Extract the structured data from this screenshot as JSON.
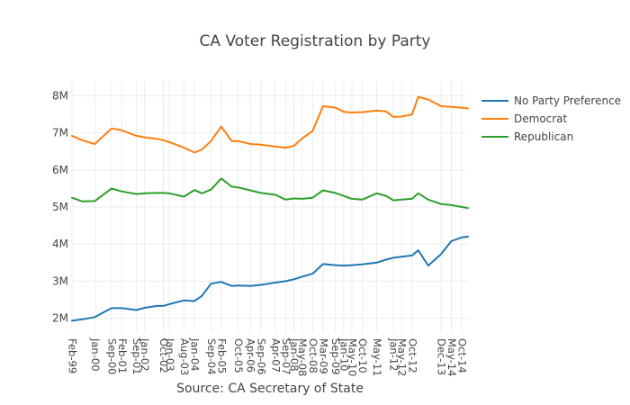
{
  "chart_data": {
    "type": "line",
    "title": "CA Voter Registration by Party",
    "xlabel": "Source: CA Secretary of State",
    "ylabel": "",
    "ylim": [
      1.6,
      8.4
    ],
    "y_unit": "millions of registered voters",
    "yticks": [
      {
        "value": 2,
        "label": "2M"
      },
      {
        "value": 3,
        "label": "3M"
      },
      {
        "value": 4,
        "label": "4M"
      },
      {
        "value": 5,
        "label": "5M"
      },
      {
        "value": 6,
        "label": "6M"
      },
      {
        "value": 7,
        "label": "7M"
      },
      {
        "value": 8,
        "label": "8M"
      }
    ],
    "xlim": [
      1999.08,
      2015.0
    ],
    "xticks": [
      {
        "value": 1999.08,
        "label": "Feb-99"
      },
      {
        "value": 2000.0,
        "label": "Jan-00"
      },
      {
        "value": 2000.67,
        "label": "Sep-00"
      },
      {
        "value": 2001.08,
        "label": "Feb-01"
      },
      {
        "value": 2001.67,
        "label": "Sep-01"
      },
      {
        "value": 2002.0,
        "label": "Jan-02"
      },
      {
        "value": 2002.75,
        "label": "Oct-02"
      },
      {
        "value": 2003.0,
        "label": "Jan-03"
      },
      {
        "value": 2003.58,
        "label": "Aug-03"
      },
      {
        "value": 2004.0,
        "label": "Jan-04"
      },
      {
        "value": 2004.67,
        "label": "Sep-04"
      },
      {
        "value": 2005.08,
        "label": "Feb-05"
      },
      {
        "value": 2005.75,
        "label": "Oct-05"
      },
      {
        "value": 2006.25,
        "label": "Apr-06"
      },
      {
        "value": 2006.67,
        "label": "Sep-06"
      },
      {
        "value": 2007.25,
        "label": "Apr-07"
      },
      {
        "value": 2007.67,
        "label": "Sep-07"
      },
      {
        "value": 2008.0,
        "label": "Jan-08"
      },
      {
        "value": 2008.33,
        "label": "May-08"
      },
      {
        "value": 2008.75,
        "label": "Oct-08"
      },
      {
        "value": 2009.17,
        "label": "Mar-09"
      },
      {
        "value": 2009.67,
        "label": "Sep-09"
      },
      {
        "value": 2010.0,
        "label": "Jan-10"
      },
      {
        "value": 2010.33,
        "label": "May-10"
      },
      {
        "value": 2010.75,
        "label": "Oct-10"
      },
      {
        "value": 2011.33,
        "label": "May-11"
      },
      {
        "value": 2012.0,
        "label": "Jan-12"
      },
      {
        "value": 2012.33,
        "label": "May-12"
      },
      {
        "value": 2012.75,
        "label": "Oct-12"
      },
      {
        "value": 2013.92,
        "label": "Dec-13"
      },
      {
        "value": 2014.33,
        "label": "May-14"
      },
      {
        "value": 2014.75,
        "label": "Oct-14"
      }
    ],
    "series": [
      {
        "name": "No Party Preference",
        "color": "#1f77b4",
        "x": [
          1999.08,
          1999.5,
          2000.0,
          2000.67,
          2001.08,
          2001.67,
          2002.0,
          2002.5,
          2002.75,
          2003.0,
          2003.58,
          2004.0,
          2004.3,
          2004.67,
          2005.08,
          2005.5,
          2005.75,
          2006.25,
          2006.67,
          2007.25,
          2007.67,
          2008.0,
          2008.33,
          2008.75,
          2009.17,
          2009.67,
          2010.0,
          2010.33,
          2010.75,
          2011.33,
          2011.7,
          2012.0,
          2012.33,
          2012.75,
          2013.0,
          2013.4,
          2013.92,
          2014.33,
          2014.75,
          2015.0
        ],
        "values": [
          1.93,
          1.97,
          2.03,
          2.27,
          2.27,
          2.22,
          2.28,
          2.33,
          2.33,
          2.38,
          2.48,
          2.46,
          2.6,
          2.93,
          2.98,
          2.87,
          2.88,
          2.87,
          2.9,
          2.96,
          3.0,
          3.05,
          3.12,
          3.2,
          3.46,
          3.43,
          3.42,
          3.43,
          3.45,
          3.5,
          3.58,
          3.63,
          3.66,
          3.69,
          3.83,
          3.42,
          3.73,
          4.08,
          4.18,
          4.2
        ]
      },
      {
        "name": "Democrat",
        "color": "#ff7f0e",
        "x": [
          1999.08,
          1999.5,
          2000.0,
          2000.67,
          2001.08,
          2001.67,
          2002.0,
          2002.5,
          2002.75,
          2003.0,
          2003.58,
          2004.0,
          2004.3,
          2004.67,
          2005.08,
          2005.5,
          2005.75,
          2006.25,
          2006.67,
          2007.25,
          2007.67,
          2008.0,
          2008.33,
          2008.75,
          2009.17,
          2009.67,
          2010.0,
          2010.33,
          2010.75,
          2011.33,
          2011.7,
          2012.0,
          2012.33,
          2012.75,
          2013.0,
          2013.4,
          2013.92,
          2014.33,
          2014.75,
          2015.0
        ],
        "values": [
          6.92,
          6.8,
          6.7,
          7.12,
          7.07,
          6.92,
          6.88,
          6.84,
          6.8,
          6.75,
          6.6,
          6.47,
          6.55,
          6.78,
          7.17,
          6.78,
          6.78,
          6.7,
          6.68,
          6.63,
          6.6,
          6.65,
          6.85,
          7.05,
          7.72,
          7.68,
          7.57,
          7.55,
          7.56,
          7.6,
          7.58,
          7.43,
          7.44,
          7.5,
          7.97,
          7.9,
          7.72,
          7.7,
          7.68,
          7.66
        ]
      },
      {
        "name": "Republican",
        "color": "#2ca02c",
        "x": [
          1999.08,
          1999.5,
          2000.0,
          2000.67,
          2001.08,
          2001.67,
          2002.0,
          2002.5,
          2002.75,
          2003.0,
          2003.58,
          2004.0,
          2004.3,
          2004.67,
          2005.08,
          2005.5,
          2005.75,
          2006.25,
          2006.67,
          2007.25,
          2007.67,
          2008.0,
          2008.33,
          2008.75,
          2009.17,
          2009.67,
          2010.0,
          2010.33,
          2010.75,
          2011.33,
          2011.7,
          2012.0,
          2012.33,
          2012.75,
          2013.0,
          2013.4,
          2013.92,
          2014.33,
          2014.75,
          2015.0
        ],
        "values": [
          5.25,
          5.15,
          5.16,
          5.5,
          5.42,
          5.35,
          5.37,
          5.38,
          5.38,
          5.37,
          5.28,
          5.46,
          5.37,
          5.47,
          5.77,
          5.55,
          5.53,
          5.45,
          5.38,
          5.33,
          5.2,
          5.23,
          5.22,
          5.25,
          5.45,
          5.38,
          5.3,
          5.22,
          5.2,
          5.37,
          5.3,
          5.18,
          5.2,
          5.22,
          5.37,
          5.2,
          5.08,
          5.05,
          5.0,
          4.97
        ]
      }
    ],
    "legend": {
      "placement": "top-right",
      "items": [
        "No Party Preference",
        "Democrat",
        "Republican"
      ]
    }
  }
}
